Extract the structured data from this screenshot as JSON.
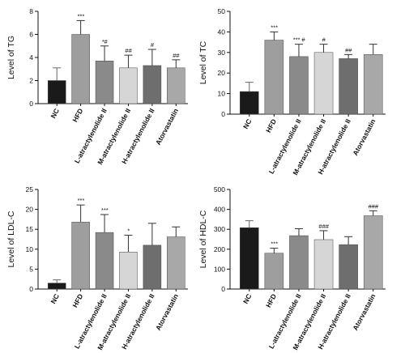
{
  "bar_colors": [
    "#1a1a1a",
    "#9e9e9e",
    "#8a8a8a",
    "#d6d6d6",
    "#6e6e6e",
    "#a8a8a8"
  ],
  "chart_data": [
    {
      "type": "bar",
      "ylabel": "Level of TG",
      "ylim": [
        0,
        8
      ],
      "yticks": [
        0,
        2,
        4,
        6,
        8
      ],
      "categories": [
        "NC",
        "HFD",
        "L-atractylenolide II",
        "M-atractylenolide II",
        "H-atractylenolide II",
        "Atorvastatin"
      ],
      "values": [
        2.0,
        6.0,
        3.7,
        3.1,
        3.3,
        3.1
      ],
      "errors": [
        1.1,
        1.2,
        1.3,
        1.1,
        1.4,
        0.7
      ],
      "significance": [
        "",
        "***",
        "*#",
        "##",
        "#",
        "##"
      ]
    },
    {
      "type": "bar",
      "ylabel": "Level of TC",
      "ylim": [
        0,
        50
      ],
      "yticks": [
        0,
        10,
        20,
        30,
        40,
        50
      ],
      "categories": [
        "NC",
        "HFD",
        "L-atractylenolide II",
        "M-atractylenolide II",
        "H-atractylenolide II",
        "Atorvastatin"
      ],
      "values": [
        11,
        36,
        28,
        30,
        27,
        29
      ],
      "errors": [
        4.5,
        4.0,
        6.0,
        4.0,
        2.0,
        5.0
      ],
      "significance": [
        "",
        "***",
        "*** #",
        "#",
        "##",
        ""
      ]
    },
    {
      "type": "bar",
      "ylabel": "Level of LDL-C",
      "ylim": [
        0,
        25
      ],
      "yticks": [
        0,
        5,
        10,
        15,
        20,
        25
      ],
      "categories": [
        "NC",
        "HFD",
        "L-atractylenolide II",
        "M-atractylenolide II",
        "H-atractylenolide II",
        "Atorvastatin"
      ],
      "values": [
        1.5,
        16.8,
        14.2,
        9.3,
        11.0,
        13.1
      ],
      "errors": [
        0.8,
        4.3,
        4.5,
        4.2,
        5.5,
        2.5
      ],
      "significance": [
        "",
        "***",
        "***",
        "*",
        "",
        ""
      ]
    },
    {
      "type": "bar",
      "ylabel": "Level of HDL-C",
      "ylim": [
        0,
        500
      ],
      "yticks": [
        0,
        100,
        200,
        300,
        400,
        500
      ],
      "categories": [
        "NC",
        "HFD",
        "L-atractylenolide II",
        "M-atractylenolide II",
        "H-atractylenolide II",
        "Atorvastatin"
      ],
      "values": [
        308,
        180,
        268,
        248,
        223,
        368
      ],
      "errors": [
        35,
        25,
        35,
        45,
        40,
        25
      ],
      "significance": [
        "",
        "***",
        "",
        "###",
        "",
        "###"
      ]
    }
  ]
}
